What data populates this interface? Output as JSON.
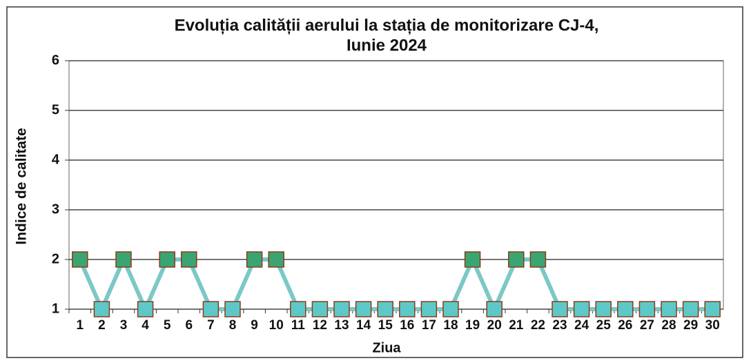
{
  "chart_data": {
    "type": "line",
    "title": [
      "Evoluția calității aerului la stația de monitorizare CJ-4,",
      "Iunie 2024"
    ],
    "x_label": "Ziua",
    "y_label": "Indice de calitate",
    "categories": [
      "1",
      "2",
      "3",
      "4",
      "5",
      "6",
      "7",
      "8",
      "9",
      "10",
      "11",
      "12",
      "13",
      "14",
      "15",
      "16",
      "17",
      "18",
      "19",
      "20",
      "21",
      "22",
      "23",
      "24",
      "25",
      "26",
      "27",
      "28",
      "29",
      "30"
    ],
    "series": [
      {
        "name": "Indice de calitate",
        "color": "#7cc8c8",
        "values": [
          2,
          1,
          2,
          1,
          2,
          2,
          1,
          1,
          2,
          2,
          1,
          1,
          1,
          1,
          1,
          1,
          1,
          1,
          2,
          1,
          2,
          2,
          1,
          1,
          1,
          1,
          1,
          1,
          1,
          1
        ],
        "marker_colors": [
          "#3aa572",
          "#5ec8c8",
          "#3aa572",
          "#5ec8c8",
          "#3aa572",
          "#3aa572",
          "#5ec8c8",
          "#5ec8c8",
          "#3aa572",
          "#3aa572",
          "#5ec8c8",
          "#5ec8c8",
          "#5ec8c8",
          "#5ec8c8",
          "#5ec8c8",
          "#5ec8c8",
          "#5ec8c8",
          "#5ec8c8",
          "#3aa572",
          "#5ec8c8",
          "#3aa572",
          "#3aa572",
          "#5ec8c8",
          "#5ec8c8",
          "#5ec8c8",
          "#5ec8c8",
          "#5ec8c8",
          "#5ec8c8",
          "#5ec8c8",
          "#5ec8c8"
        ],
        "marker_edge": "#8b3a1a"
      }
    ],
    "ylim": [
      1,
      6
    ],
    "yticks": [
      1,
      2,
      3,
      4,
      5,
      6
    ],
    "grid": true
  }
}
